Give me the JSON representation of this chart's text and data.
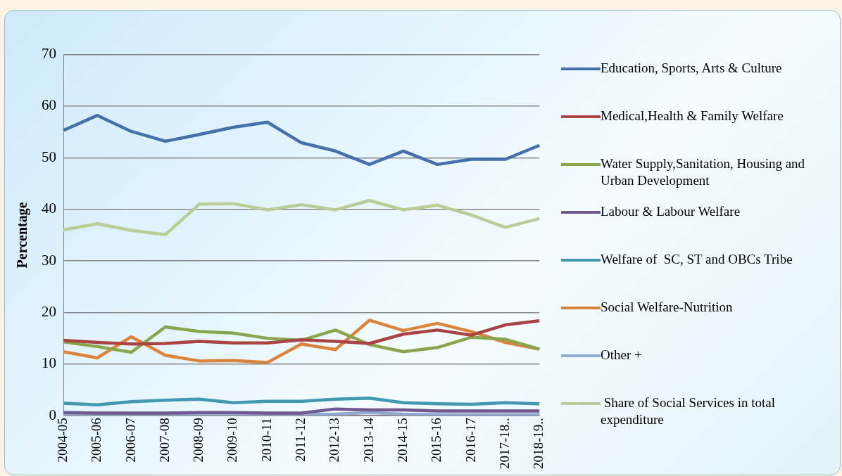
{
  "chart_data": {
    "type": "line",
    "ylabel": "Percentage",
    "categories": [
      "2004-05",
      "2005-06",
      "2006-07",
      "2007-08",
      "2008-09",
      "2009-10",
      "2010-11",
      "2011-12",
      "2012-13",
      "2013-14",
      "2014-15",
      "2015-16",
      "2016-17",
      "2017-18..",
      "2018-19.."
    ],
    "ylim": [
      0,
      70
    ],
    "yticks": [
      0,
      10,
      20,
      30,
      40,
      50,
      60,
      70
    ],
    "grid": "y",
    "legend": "right",
    "marker": "none",
    "line_style": "solid",
    "series": [
      {
        "name": "Education, Sports, Arts & Culture",
        "color": "#4470ab",
        "values": [
          55.3,
          58.2,
          55.1,
          53.2,
          54.5,
          55.9,
          56.9,
          52.9,
          51.3,
          48.7,
          51.3,
          48.7,
          49.7,
          49.7,
          52.4
        ]
      },
      {
        "name": "Medical,Health & Family Welfare",
        "color": "#aa4443",
        "values": [
          14.6,
          14.2,
          13.9,
          14.0,
          14.4,
          14.1,
          14.1,
          14.7,
          14.4,
          14.0,
          15.8,
          16.6,
          15.6,
          17.6,
          18.4
        ]
      },
      {
        "name": "Water Supply,Sanitation, Housing and Urban Development",
        "color": "#89a54e",
        "values": [
          14.3,
          13.4,
          12.3,
          17.2,
          16.3,
          16.0,
          15.0,
          14.6,
          16.6,
          13.8,
          12.4,
          13.2,
          15.2,
          14.8,
          12.9
        ]
      },
      {
        "name": "Labour & Labour Welfare",
        "color": "#71588f",
        "values": [
          0.6,
          0.5,
          0.5,
          0.5,
          0.6,
          0.6,
          0.5,
          0.5,
          1.3,
          1.1,
          1.1,
          0.9,
          0.9,
          0.9,
          0.9
        ]
      },
      {
        "name": "Welfare of  SC, ST and OBCs Tribe",
        "color": "#4198af",
        "values": [
          2.4,
          2.1,
          2.7,
          3.0,
          3.2,
          2.5,
          2.8,
          2.8,
          3.2,
          3.4,
          2.5,
          2.3,
          2.2,
          2.5,
          2.3
        ]
      },
      {
        "name": "Social Welfare-Nutrition",
        "color": "#db843d",
        "values": [
          12.4,
          11.2,
          15.3,
          11.7,
          10.6,
          10.7,
          10.3,
          13.9,
          12.8,
          18.5,
          16.5,
          17.9,
          16.3,
          14.2,
          12.9
        ]
      },
      {
        "name": "Other +",
        "color": "#93a9cf",
        "values": [
          0.2,
          0.2,
          0.2,
          0.2,
          0.3,
          0.3,
          0.3,
          0.2,
          0.3,
          0.6,
          0.3,
          0.2,
          0.2,
          0.2,
          0.2
        ]
      },
      {
        "name": " Share of Social Services in total expenditure",
        "color": "#b9cd96",
        "values": [
          36.0,
          37.2,
          35.9,
          35.1,
          41.0,
          41.1,
          39.9,
          40.9,
          39.9,
          41.7,
          39.9,
          40.8,
          38.9,
          36.5,
          38.2
        ]
      }
    ]
  }
}
